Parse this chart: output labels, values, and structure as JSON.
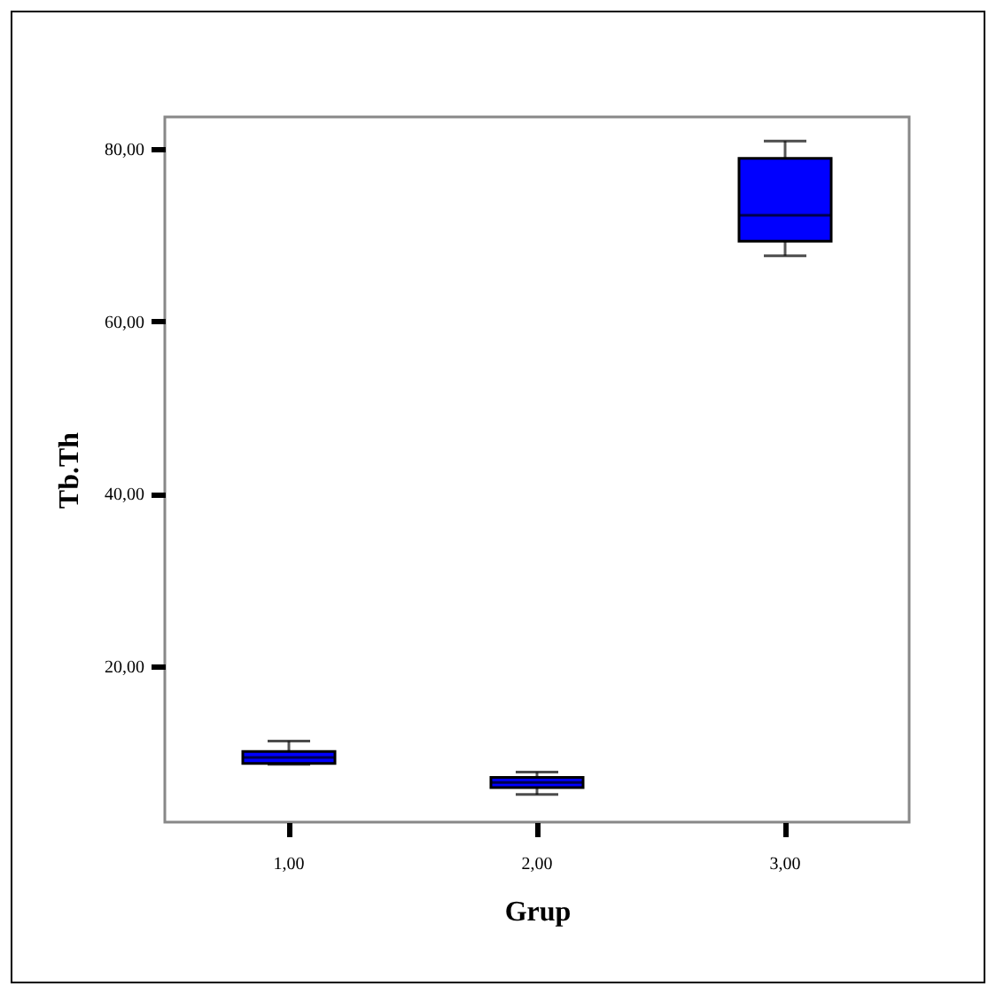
{
  "chart_data": {
    "type": "box",
    "xlabel": "Grup",
    "ylabel": "Tb.Th",
    "categories": [
      "1,00",
      "2,00",
      "3,00"
    ],
    "boxes": [
      {
        "low": 8.6,
        "q1": 8.7,
        "median": 9.4,
        "q3": 10.1,
        "high": 11.3
      },
      {
        "low": 5.1,
        "q1": 5.9,
        "median": 6.5,
        "q3": 7.1,
        "high": 7.7
      },
      {
        "low": 67.6,
        "q1": 69.3,
        "median": 72.3,
        "q3": 78.9,
        "high": 80.9
      }
    ],
    "color": "#0000ff",
    "ylim": [
      1.9,
      83.7
    ],
    "yticks": [
      {
        "value": 20,
        "label": "20,00"
      },
      {
        "value": 40,
        "label": "40,00"
      },
      {
        "value": 60,
        "label": "60,00"
      },
      {
        "value": 80,
        "label": "80,00"
      }
    ],
    "grid": false
  }
}
